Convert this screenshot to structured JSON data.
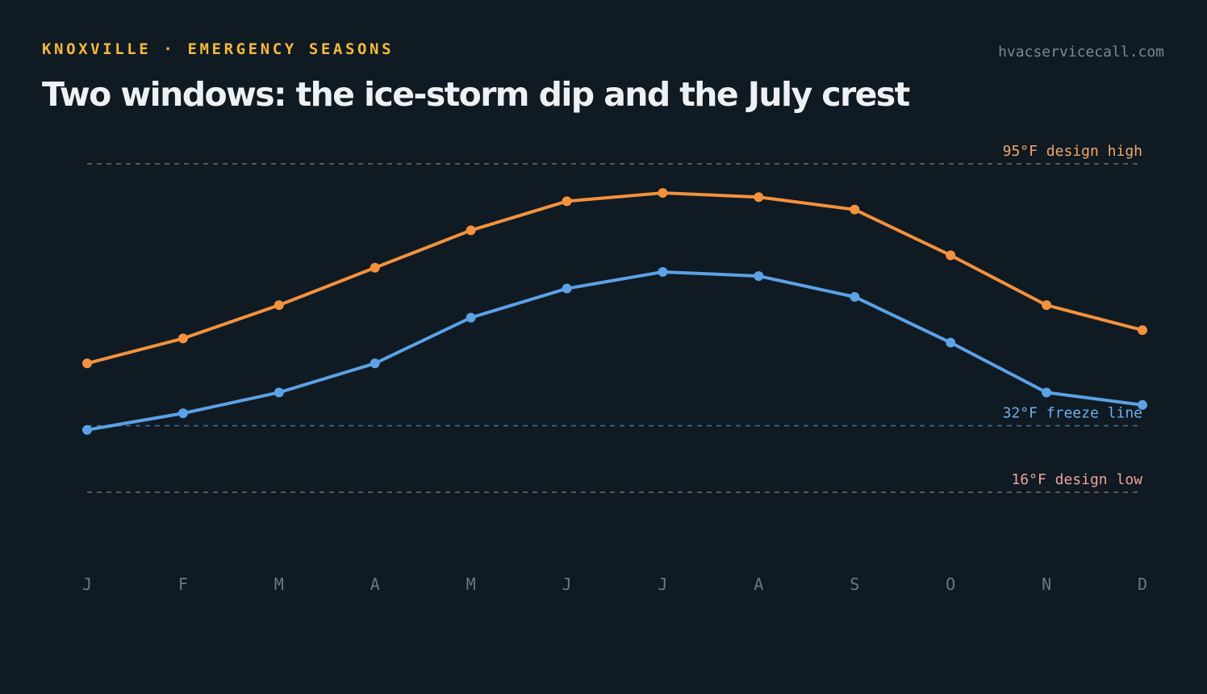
{
  "header": {
    "eyebrow": "KNOXVILLE · EMERGENCY SEASONS",
    "site": "hvacservicecall.com",
    "title": "Two windows: the ice-storm dip and the July crest"
  },
  "colors": {
    "background": "#0f1a23",
    "high": "#f3923d",
    "low": "#5ba2e6",
    "ref_high": "#f3a66a",
    "ref_freeze": "#6fb0ea",
    "ref_low": "#f0a29c",
    "eyebrow": "#f5b83d"
  },
  "chart_data": {
    "type": "line",
    "categories": [
      "J",
      "F",
      "M",
      "A",
      "M",
      "J",
      "J",
      "A",
      "S",
      "O",
      "N",
      "D"
    ],
    "series": [
      {
        "key": "high",
        "values": [
          47,
          53,
          61,
          70,
          79,
          86,
          88,
          87,
          84,
          73,
          61,
          55
        ]
      },
      {
        "key": "low",
        "values": [
          31,
          35,
          40,
          47,
          58,
          65,
          69,
          68,
          63,
          52,
          40,
          37
        ]
      }
    ],
    "reference_lines": [
      {
        "key": "ref_high",
        "value": 95,
        "label": "95°F design high"
      },
      {
        "key": "ref_freeze",
        "value": 32,
        "label": "32°F freeze line"
      },
      {
        "key": "ref_low",
        "value": 16,
        "label": "16°F design low"
      }
    ],
    "ylim": [
      16,
      95
    ],
    "grid": false,
    "legend": "none"
  }
}
